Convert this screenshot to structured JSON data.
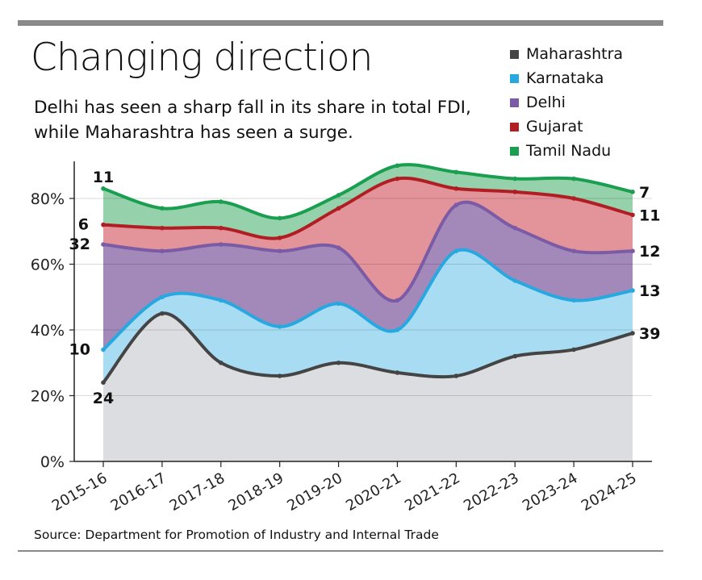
{
  "title": "Changing direction",
  "subtitle": "Delhi has seen a sharp fall in its share in total FDI, while Maharashtra has seen a surge.",
  "source": "Source: Department for Promotion of Industry and Internal Trade",
  "chart_data": {
    "type": "area",
    "stacked": true,
    "categories": [
      "2015-16",
      "2016-17",
      "2017-18",
      "2018-19",
      "2019-20",
      "2020-21",
      "2021-22",
      "2022-23",
      "2023-24",
      "2024-25"
    ],
    "ylim": [
      0,
      90
    ],
    "yticks": [
      0,
      20,
      40,
      60,
      80
    ],
    "ytick_labels": [
      "0%",
      "20%",
      "40%",
      "60%",
      "80%"
    ],
    "grid": true,
    "legend_position": "top-right",
    "series": [
      {
        "name": "Maharashtra",
        "line_color": "#444444",
        "fill_color": "#dcdde0",
        "values": [
          24,
          45,
          30,
          26,
          30,
          27,
          26,
          32,
          34,
          39
        ],
        "start_label": "24",
        "end_label": "39"
      },
      {
        "name": "Karnataka",
        "line_color": "#27a8e0",
        "fill_color": "#a8dcf2",
        "values": [
          10,
          5,
          19,
          15,
          18,
          13,
          38,
          23,
          15,
          13
        ],
        "start_label": "10",
        "end_label": "13"
      },
      {
        "name": "Delhi",
        "line_color": "#7b5ba6",
        "fill_color": "#a388ba",
        "values": [
          32,
          14,
          17,
          23,
          17,
          9,
          14,
          16,
          15,
          12
        ],
        "start_label": "32",
        "end_label": "12"
      },
      {
        "name": "Gujarat",
        "line_color": "#b01e24",
        "fill_color": "#e3939a",
        "values": [
          6,
          7,
          5,
          4,
          12,
          37,
          5,
          11,
          16,
          11
        ],
        "start_label": "6",
        "end_label": "11"
      },
      {
        "name": "Tamil Nadu",
        "line_color": "#1a9e4f",
        "fill_color": "#95d1ab",
        "values": [
          11,
          6,
          8,
          6,
          4,
          4,
          5,
          4,
          6,
          7
        ],
        "start_label": "11",
        "end_label": "7"
      }
    ]
  }
}
